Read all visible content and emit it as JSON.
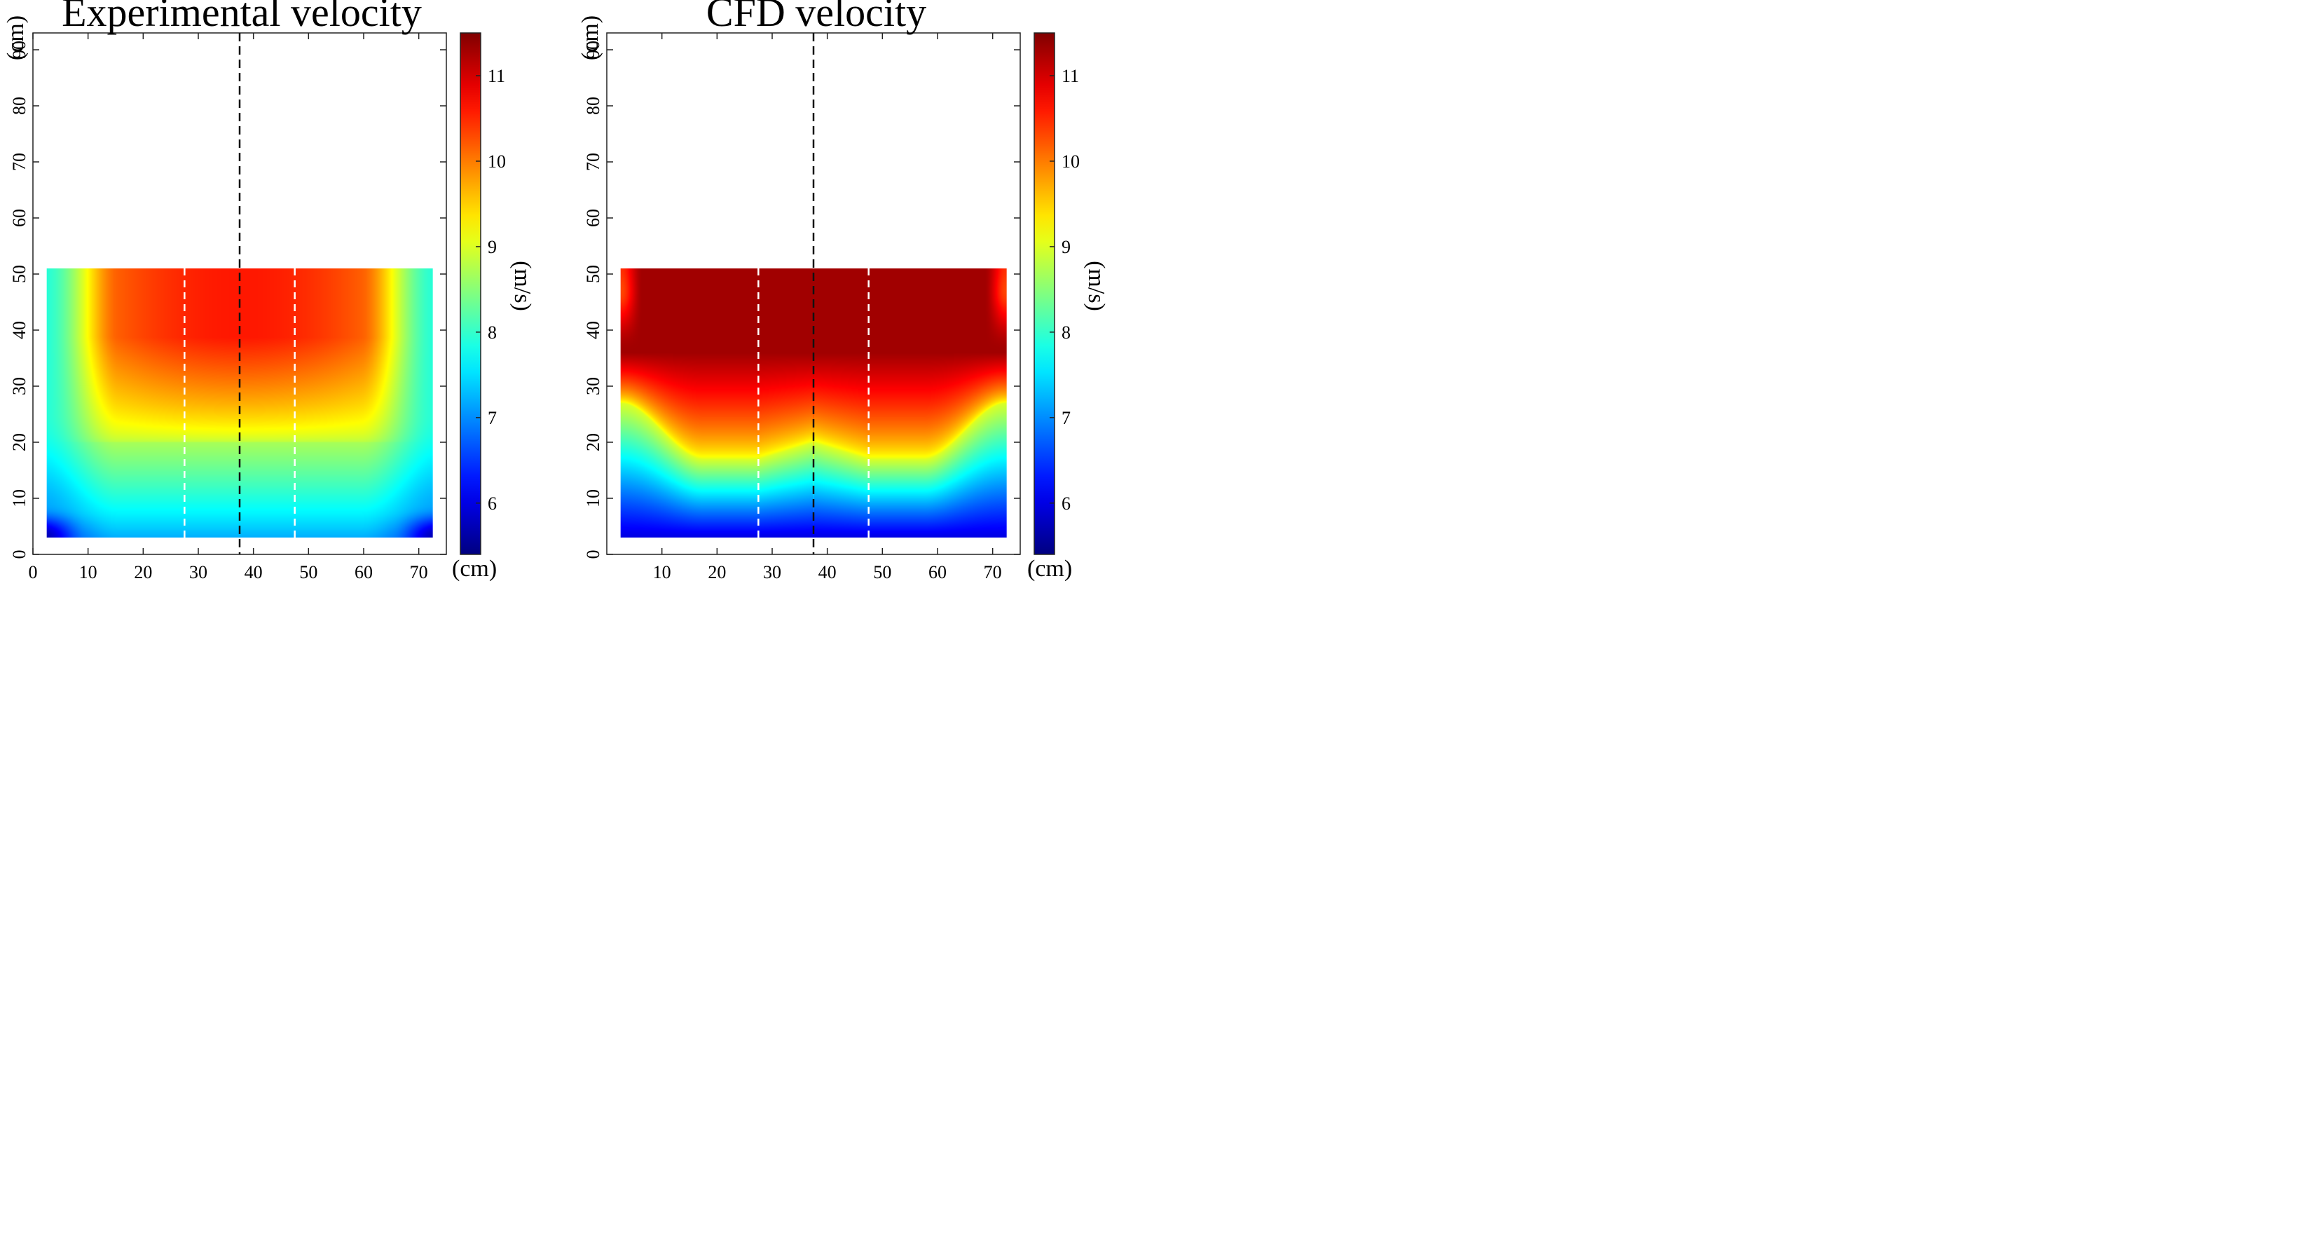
{
  "chart_data": [
    {
      "type": "heatmap",
      "title": "Experimental velocity",
      "xlabel": "(cm)",
      "ylabel": "(cm)",
      "xlim": [
        0,
        75
      ],
      "ylim": [
        0,
        93
      ],
      "xticks": [
        0,
        10,
        20,
        30,
        40,
        50,
        60,
        70
      ],
      "yticks": [
        0,
        10,
        20,
        30,
        40,
        50,
        60,
        70,
        80,
        90
      ],
      "data_extent": {
        "x": [
          2.5,
          72.5
        ],
        "y": [
          3,
          51
        ]
      },
      "colorbar": {
        "label": "(m/s)",
        "range": [
          5.4,
          11.5
        ],
        "ticks": [
          6,
          7,
          8,
          9,
          10,
          11
        ],
        "colormap": "jet"
      },
      "reference_lines": {
        "center_x": 37.5,
        "side_x": [
          27.5,
          47.5
        ]
      },
      "field_model": "experimental",
      "field_description": "velocity peaks ~10.6 m/s in upper centre, drops to ~9 m/s near y=20 and ~7 m/s at edges"
    },
    {
      "type": "heatmap",
      "title": "CFD velocity",
      "xlabel": "(cm)",
      "ylabel": "(cm)",
      "xlim": [
        0,
        75
      ],
      "ylim": [
        0,
        93
      ],
      "xticks": [
        10,
        20,
        30,
        40,
        50,
        60,
        70
      ],
      "yticks": [
        0,
        10,
        20,
        30,
        40,
        50,
        60,
        70,
        80,
        90
      ],
      "data_extent": {
        "x": [
          2.5,
          72.5
        ],
        "y": [
          3,
          51
        ]
      },
      "colorbar": {
        "label": "(m/s)",
        "range": [
          5.4,
          11.5
        ],
        "ticks": [
          6,
          7,
          8,
          9,
          10,
          11
        ],
        "colormap": "jet"
      },
      "reference_lines": {
        "center_x": 37.5,
        "side_x": [
          27.5,
          47.5
        ]
      },
      "field_model": "cfd",
      "field_description": "velocity ~11.3 m/s across upper region, ~9 m/s near y=18, ~6 m/s at bottom"
    }
  ]
}
